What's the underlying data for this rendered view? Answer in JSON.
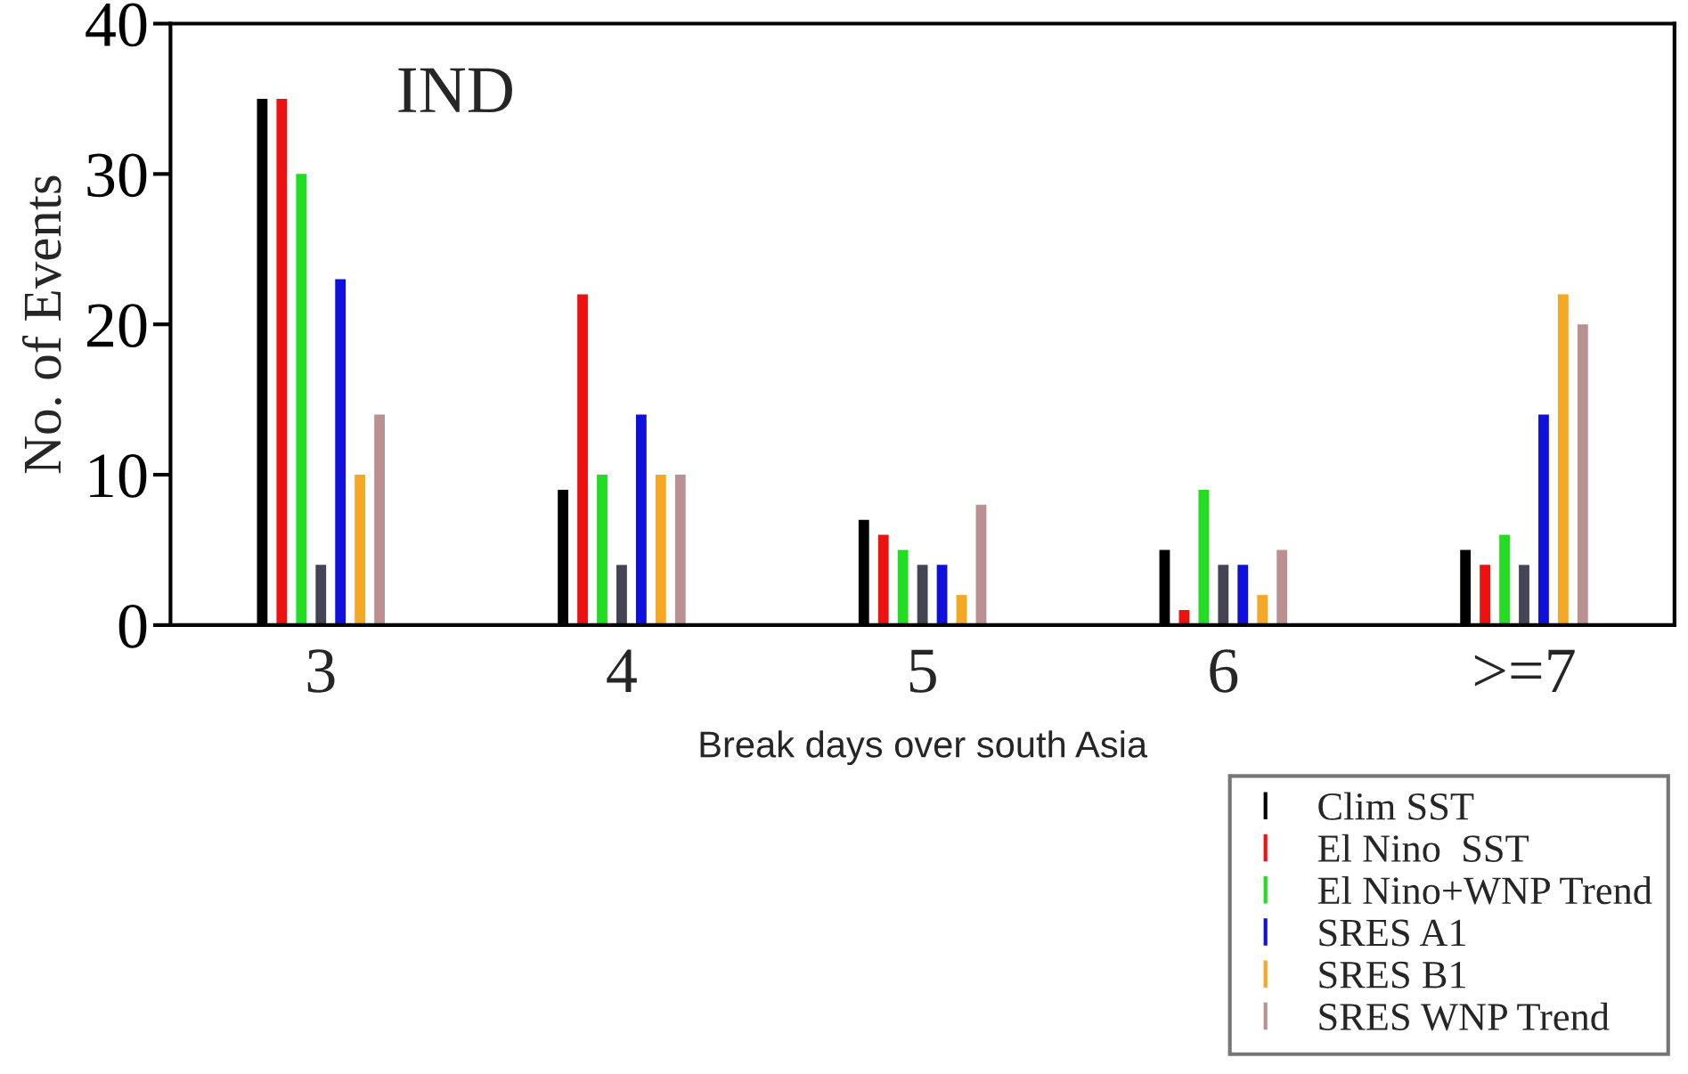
{
  "chart_data": {
    "type": "bar",
    "xlabel": "Break days over south Asia",
    "ylabel": "No. of Events",
    "annotations": [
      "IND"
    ],
    "categories": [
      "3",
      "4",
      "5",
      "6",
      ">=7"
    ],
    "series": [
      {
        "name": "Clim SST",
        "color": "#000000",
        "values": [
          35,
          9,
          7,
          5,
          5
        ]
      },
      {
        "name": "El Nino  SST",
        "color": "#ee1111",
        "values": [
          35,
          22,
          6,
          1,
          4
        ]
      },
      {
        "name": "El Nino+WNP Trend",
        "color": "#22dd22",
        "values": [
          30,
          10,
          5,
          9,
          6
        ]
      },
      {
        "color": "#444455",
        "values": [
          4,
          4,
          4,
          4,
          4
        ]
      },
      {
        "name": "SRES A1",
        "color": "#1010dd",
        "values": [
          23,
          14,
          4,
          4,
          14
        ]
      },
      {
        "name": "SRES B1",
        "color": "#f5a823",
        "values": [
          10,
          10,
          2,
          2,
          22
        ]
      },
      {
        "name": "SRES WNP Trend",
        "color": "#bb9090",
        "values": [
          14,
          10,
          8,
          5,
          20
        ]
      }
    ],
    "ylim": [
      0,
      40
    ],
    "yticks": [
      0,
      10,
      20,
      30,
      40
    ],
    "grid": false,
    "legend": "bottom right"
  }
}
